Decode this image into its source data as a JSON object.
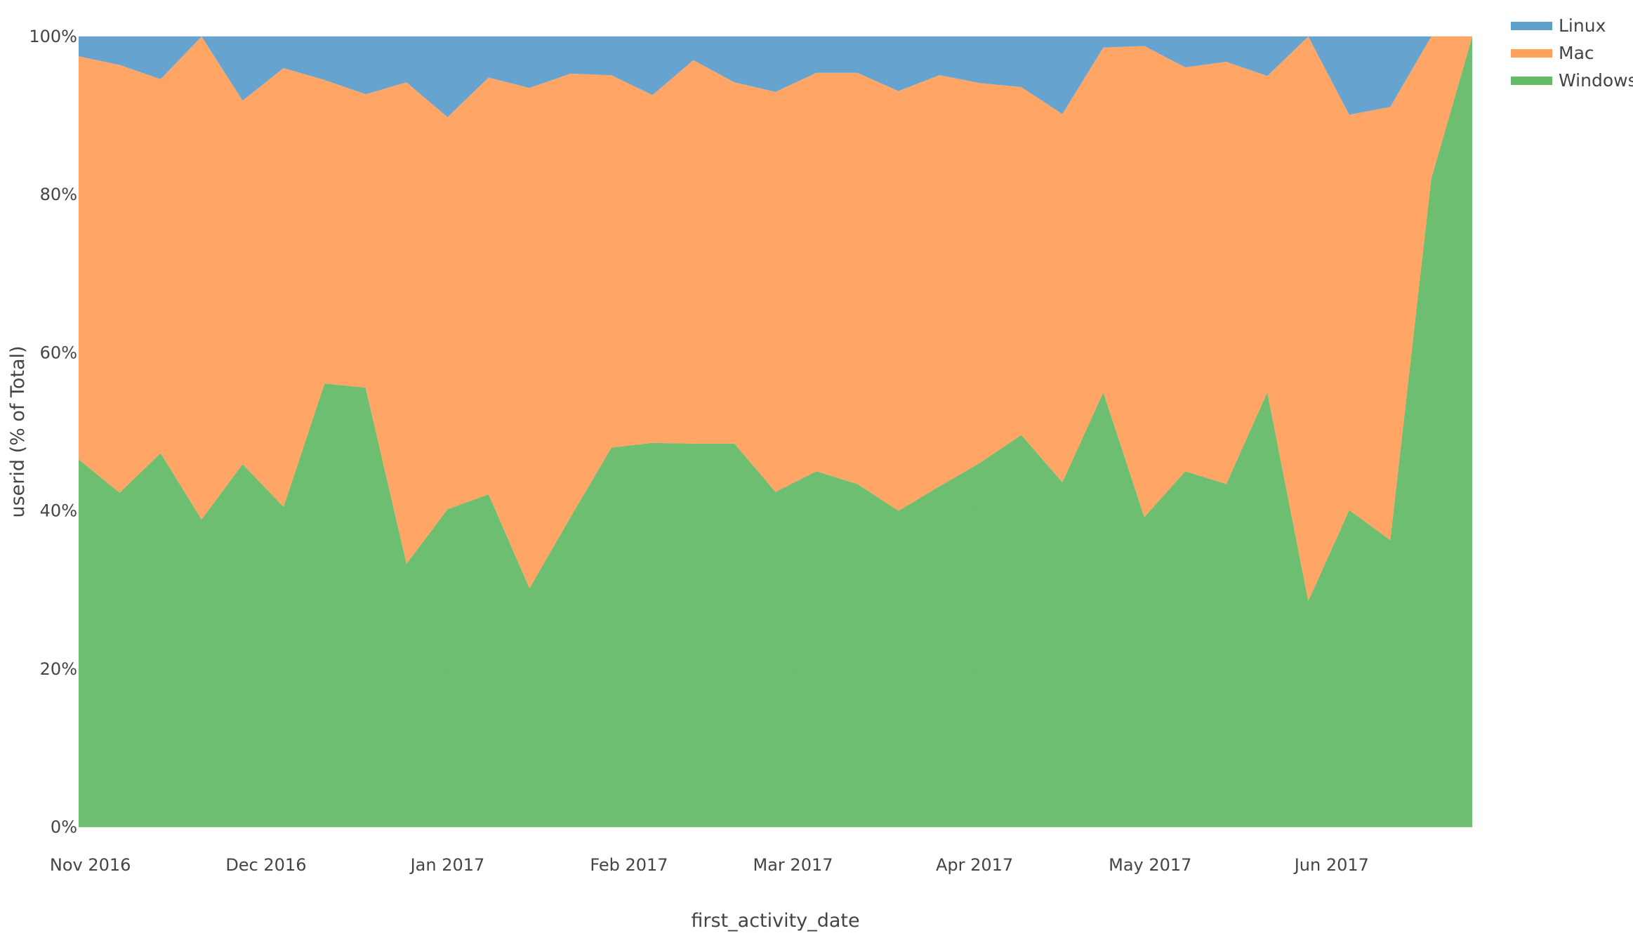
{
  "chart_data": {
    "type": "area",
    "stacking": "percent",
    "xlabel": "first_activity_date",
    "ylabel": "userid (% of Total)",
    "x": [
      "2016-10-30",
      "2016-11-06",
      "2016-11-13",
      "2016-11-20",
      "2016-11-27",
      "2016-12-04",
      "2016-12-11",
      "2016-12-18",
      "2016-12-25",
      "2017-01-01",
      "2017-01-08",
      "2017-01-15",
      "2017-01-22",
      "2017-01-29",
      "2017-02-05",
      "2017-02-12",
      "2017-02-19",
      "2017-02-26",
      "2017-03-05",
      "2017-03-12",
      "2017-03-19",
      "2017-03-26",
      "2017-04-02",
      "2017-04-09",
      "2017-04-16",
      "2017-04-23",
      "2017-04-30",
      "2017-05-07",
      "2017-05-14",
      "2017-05-21",
      "2017-05-28",
      "2017-06-04",
      "2017-06-11",
      "2017-06-18",
      "2017-06-25"
    ],
    "xlim": [
      "2016-10-30",
      "2017-06-25"
    ],
    "x_ticks": [
      {
        "date": "2016-11-01",
        "label": "Nov 2016"
      },
      {
        "date": "2016-12-01",
        "label": "Dec 2016"
      },
      {
        "date": "2017-01-01",
        "label": "Jan 2017"
      },
      {
        "date": "2017-02-01",
        "label": "Feb 2017"
      },
      {
        "date": "2017-03-01",
        "label": "Mar 2017"
      },
      {
        "date": "2017-04-01",
        "label": "Apr 2017"
      },
      {
        "date": "2017-05-01",
        "label": "May 2017"
      },
      {
        "date": "2017-06-01",
        "label": "Jun 2017"
      }
    ],
    "ylim": [
      0,
      100
    ],
    "y_ticks": [
      {
        "value": 0,
        "label": "0%"
      },
      {
        "value": 20,
        "label": "20%"
      },
      {
        "value": 40,
        "label": "40%"
      },
      {
        "value": 60,
        "label": "60%"
      },
      {
        "value": 80,
        "label": "80%"
      },
      {
        "value": 100,
        "label": "100%"
      }
    ],
    "grid": true,
    "legend_position": "top-right",
    "series": [
      {
        "name": "Windows",
        "color": "#66bb6a",
        "values": [
          46.5,
          42.3,
          47.3,
          38.9,
          45.9,
          40.5,
          56.1,
          55.6,
          33.3,
          40.2,
          42.1,
          30.2,
          39.2,
          48.0,
          48.6,
          48.5,
          48.5,
          42.4,
          45.0,
          43.4,
          40.0,
          43.1,
          46.1,
          49.6,
          43.6,
          55.0,
          39.2,
          45.0,
          43.4,
          55.0,
          28.6,
          40.1,
          36.3,
          82.0,
          100
        ]
      },
      {
        "name": "Mac",
        "color": "#ffa15e",
        "values": [
          51.0,
          54.1,
          47.3,
          61.1,
          46.0,
          55.5,
          38.4,
          37.1,
          60.9,
          49.6,
          52.7,
          63.3,
          56.1,
          47.1,
          44.0,
          48.5,
          45.7,
          50.6,
          50.4,
          52.0,
          53.1,
          52.0,
          48.0,
          44.0,
          46.6,
          43.6,
          59.6,
          51.1,
          53.4,
          40.0,
          71.4,
          50.0,
          54.8,
          18.0,
          0
        ]
      },
      {
        "name": "Linux",
        "color": "#5e9fcc",
        "values": [
          2.5,
          3.6,
          5.4,
          0,
          8.1,
          4.0,
          5.5,
          7.3,
          5.8,
          10.2,
          5.2,
          6.5,
          4.7,
          4.9,
          7.4,
          3.0,
          5.8,
          7.0,
          4.6,
          4.6,
          6.9,
          4.9,
          5.9,
          6.4,
          9.8,
          1.4,
          1.2,
          3.9,
          3.2,
          5.0,
          0,
          9.9,
          8.9,
          0,
          0
        ]
      }
    ],
    "legend_order": [
      "Linux",
      "Mac",
      "Windows"
    ]
  }
}
